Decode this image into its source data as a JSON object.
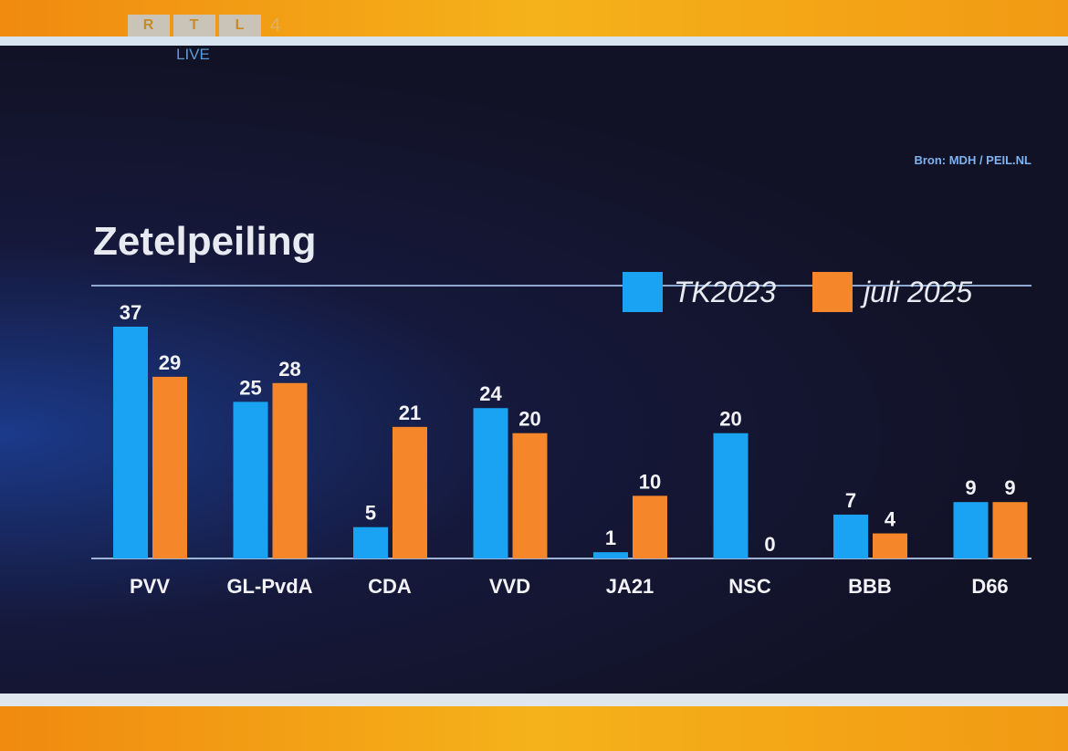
{
  "broadcaster": {
    "logo_letters": [
      "R",
      "T",
      "L"
    ],
    "channel": "4",
    "live_label": "LIVE"
  },
  "source": "Bron: MDH / PEIL.NL",
  "colors": {
    "TK2023": "#1aa3f2",
    "juli 2025": "#f5862a",
    "frame": "#f5a316",
    "background": "#131328"
  },
  "chart_data": {
    "type": "bar",
    "title": "Zetelpeiling",
    "xlabel": "",
    "ylabel": "",
    "ylim": [
      0,
      37
    ],
    "grid": false,
    "legend_position": "top-right",
    "categories": [
      "PVV",
      "GL-PvdA",
      "CDA",
      "VVD",
      "JA21",
      "NSC",
      "BBB",
      "D66"
    ],
    "series": [
      {
        "name": "TK2023",
        "values": [
          37,
          25,
          5,
          24,
          1,
          20,
          7,
          9
        ]
      },
      {
        "name": "juli 2025",
        "values": [
          29,
          28,
          21,
          20,
          10,
          0,
          4,
          9
        ]
      }
    ]
  }
}
